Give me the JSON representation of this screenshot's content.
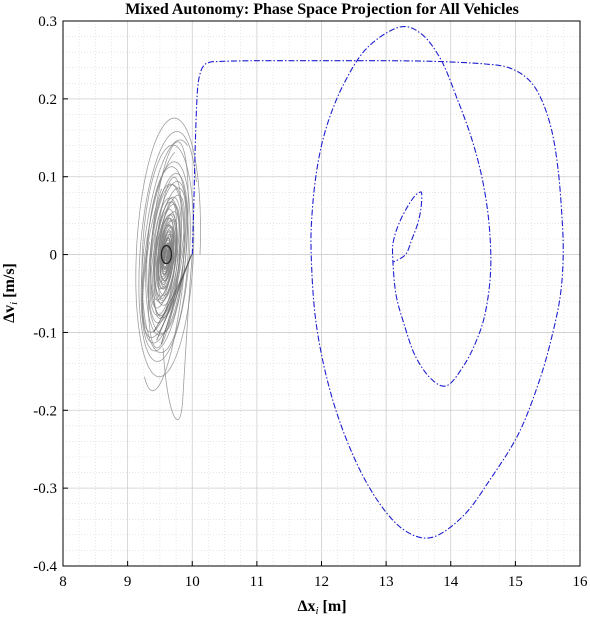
{
  "chart_data": {
    "type": "line",
    "title": "Mixed Autonomy: Phase Space Projection for All Vehicles",
    "xlabel": {
      "prefix": "Δx",
      "sub": "i",
      "suffix": " [m]"
    },
    "ylabel": {
      "prefix": "Δv",
      "sub": "i",
      "suffix": " [m/s]"
    },
    "xlim": [
      8,
      16
    ],
    "ylim": [
      -0.4,
      0.3
    ],
    "xticks": [
      8,
      9,
      10,
      11,
      12,
      13,
      14,
      15,
      16
    ],
    "yticks": [
      -0.4,
      -0.3,
      -0.2,
      -0.1,
      0,
      0.1,
      0.2,
      0.3
    ],
    "xtick_labels": [
      "8",
      "9",
      "10",
      "11",
      "12",
      "13",
      "14",
      "15",
      "16"
    ],
    "ytick_labels": [
      "-0.4",
      "-0.3",
      "-0.2",
      "-0.1",
      "0",
      "0.1",
      "0.2",
      "0.3"
    ],
    "grid": true,
    "minor_grid": true,
    "colors": {
      "human": "#7f7f7f",
      "autonomous": "#1f1fd0"
    },
    "series": [
      {
        "style": "dash-dot",
        "color": "#1f1fd0",
        "x": [
          10.0,
          10.02,
          10.05,
          10.08,
          10.12,
          10.18,
          10.27,
          10.4,
          11.0,
          12.0,
          13.0,
          13.8,
          14.5,
          14.9,
          15.2,
          15.4,
          15.56,
          15.66,
          15.72,
          15.74,
          15.7,
          15.58,
          15.38,
          15.05,
          14.6,
          14.2,
          13.72,
          13.3,
          12.9,
          12.5,
          12.15,
          11.92,
          11.84,
          11.86,
          11.95,
          12.1,
          12.35,
          12.7,
          13.2,
          13.55,
          13.85,
          14.1,
          14.32,
          14.48,
          14.58,
          14.62,
          14.6,
          14.52,
          14.4,
          14.22,
          13.95,
          13.7,
          13.45,
          13.28,
          13.15,
          13.1,
          13.12,
          13.2,
          13.32,
          13.44,
          13.52,
          13.55,
          13.54,
          13.49,
          13.4,
          13.3,
          13.1
        ],
        "y": [
          0.0,
          0.05,
          0.15,
          0.21,
          0.232,
          0.243,
          0.247,
          0.248,
          0.249,
          0.249,
          0.249,
          0.248,
          0.245,
          0.24,
          0.225,
          0.2,
          0.16,
          0.11,
          0.05,
          0.0,
          -0.05,
          -0.1,
          -0.16,
          -0.23,
          -0.29,
          -0.335,
          -0.363,
          -0.355,
          -0.32,
          -0.26,
          -0.18,
          -0.09,
          0.0,
          0.06,
          0.12,
          0.17,
          0.22,
          0.265,
          0.292,
          0.283,
          0.25,
          0.2,
          0.15,
          0.1,
          0.05,
          0.0,
          -0.04,
          -0.08,
          -0.11,
          -0.14,
          -0.168,
          -0.16,
          -0.13,
          -0.09,
          -0.05,
          0.0,
          0.02,
          0.04,
          0.06,
          0.075,
          0.08,
          0.078,
          0.06,
          0.04,
          0.02,
          0.0,
          -0.01
        ]
      }
    ]
  }
}
